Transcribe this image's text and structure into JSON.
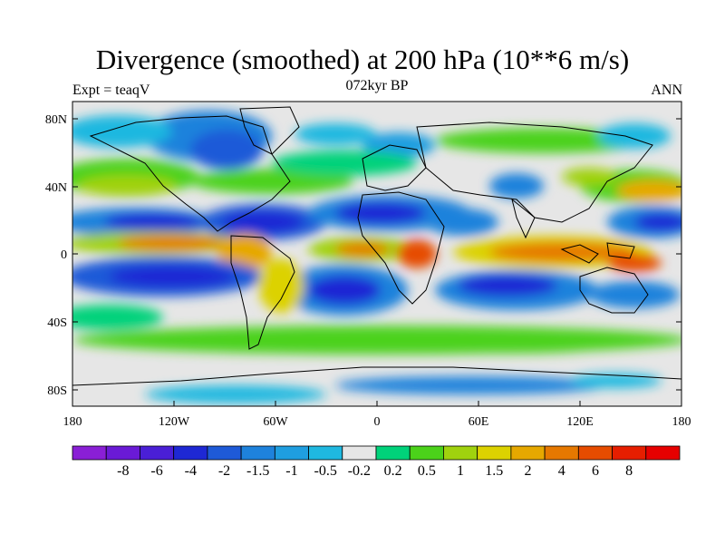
{
  "title": "Divergence (smoothed) at 200 hPa (10**6 m/s)",
  "subtitle_center": "072kyr BP",
  "subtitle_left": "Expt = teaqV",
  "subtitle_right": "ANN",
  "map": {
    "lat_ticks": [
      "80N",
      "40N",
      "0",
      "40S",
      "80S"
    ],
    "lon_ticks": [
      "180",
      "120W",
      "60W",
      "0",
      "60E",
      "120E",
      "180"
    ],
    "land_color": "#e6e6e6"
  },
  "colorbar": {
    "colors": [
      "#8a1fd6",
      "#6a1ad6",
      "#4a1fd6",
      "#1e28d4",
      "#1e5ad8",
      "#1e82dc",
      "#1f9ee0",
      "#1fb8e0",
      "#e6e6e6",
      "#00d27a",
      "#4bd21a",
      "#a0d20e",
      "#dcd200",
      "#e6a800",
      "#e67800",
      "#e64c00",
      "#e61e00",
      "#e60000"
    ],
    "labels": [
      "-8",
      "-6",
      "-4",
      "-2",
      "-1.5",
      "-1",
      "-0.5",
      "-0.2",
      "0.2",
      "0.5",
      "1",
      "1.5",
      "2",
      "4",
      "6",
      "8"
    ]
  }
}
